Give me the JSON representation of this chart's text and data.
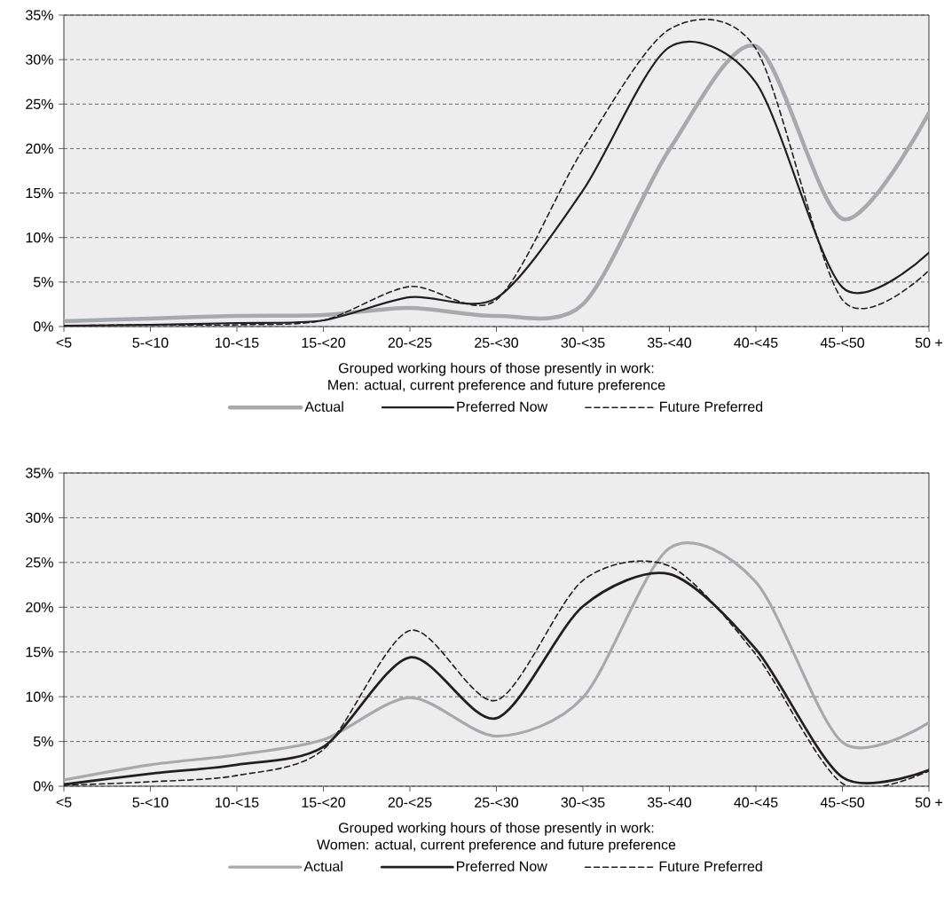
{
  "chart_data": [
    {
      "type": "line",
      "xlabel": "Grouped working hours of those presently in work:",
      "subtitle": "Men: actual, current preference and future preference",
      "categories": [
        "<5",
        "5-<10",
        "10-<15",
        "15-<20",
        "20-<25",
        "25-<30",
        "30-<35",
        "35-<40",
        "40-<45",
        "45-<50",
        "50 +"
      ],
      "series": [
        {
          "name": "Actual",
          "color": "#a7a9ac",
          "line_style": "solid",
          "values": [
            0.6,
            0.9,
            1.2,
            1.3,
            2.1,
            1.2,
            2.5,
            19.9,
            31.5,
            12.1,
            24.0
          ]
        },
        {
          "name": "Preferred Now",
          "color": "#231f20",
          "line_style": "solid",
          "values": [
            0.1,
            0.2,
            0.4,
            0.7,
            3.3,
            3.2,
            15.3,
            31.4,
            27.4,
            4.4,
            8.3
          ]
        },
        {
          "name": "Future Preferred",
          "color": "#231f20",
          "line_style": "dashed",
          "values": [
            0.1,
            0.2,
            0.2,
            0.7,
            4.5,
            3.0,
            19.9,
            33.4,
            31.2,
            3.0,
            6.3
          ]
        }
      ],
      "ylim": [
        0,
        35
      ],
      "yticks": [
        {
          "value": 0,
          "label": "0%"
        },
        {
          "value": 5,
          "label": "5%"
        },
        {
          "value": 10,
          "label": "10%"
        },
        {
          "value": 15,
          "label": "15%"
        },
        {
          "value": 20,
          "label": "20%"
        },
        {
          "value": 25,
          "label": "25%"
        },
        {
          "value": 30,
          "label": "30%"
        },
        {
          "value": 35,
          "label": "35%"
        }
      ],
      "grid": "y",
      "legend": "bottom"
    },
    {
      "type": "line",
      "xlabel": "Grouped working hours of those presently in work:",
      "subtitle": "Women: actual, current preference and future preference",
      "categories": [
        "<5",
        "5-<10",
        "10-<15",
        "15-<20",
        "20-<25",
        "25-<30",
        "30-<35",
        "35-<40",
        "40-<45",
        "45-<50",
        "50 +"
      ],
      "series": [
        {
          "name": "Actual",
          "color": "#a7a9ac",
          "line_style": "solid",
          "values": [
            0.7,
            2.4,
            3.5,
            5.2,
            9.9,
            5.6,
            9.9,
            26.6,
            22.8,
            4.9,
            7.1
          ]
        },
        {
          "name": "Preferred Now",
          "color": "#231f20",
          "line_style": "solid",
          "values": [
            0.2,
            1.4,
            2.4,
            4.4,
            14.4,
            7.6,
            20.1,
            23.7,
            15.3,
            1.0,
            1.8
          ]
        },
        {
          "name": "Future Preferred",
          "color": "#231f20",
          "line_style": "dashed",
          "values": [
            0.1,
            0.5,
            1.2,
            4.1,
            17.4,
            9.6,
            23.0,
            24.6,
            14.7,
            0.3,
            1.7
          ]
        }
      ],
      "ylim": [
        0,
        35
      ],
      "yticks": [
        {
          "value": 0,
          "label": "0%"
        },
        {
          "value": 5,
          "label": "5%"
        },
        {
          "value": 10,
          "label": "10%"
        },
        {
          "value": 15,
          "label": "15%"
        },
        {
          "value": 20,
          "label": "20%"
        },
        {
          "value": 25,
          "label": "25%"
        },
        {
          "value": 30,
          "label": "30%"
        },
        {
          "value": 35,
          "label": "35%"
        }
      ],
      "grid": "y",
      "legend": "bottom"
    }
  ]
}
